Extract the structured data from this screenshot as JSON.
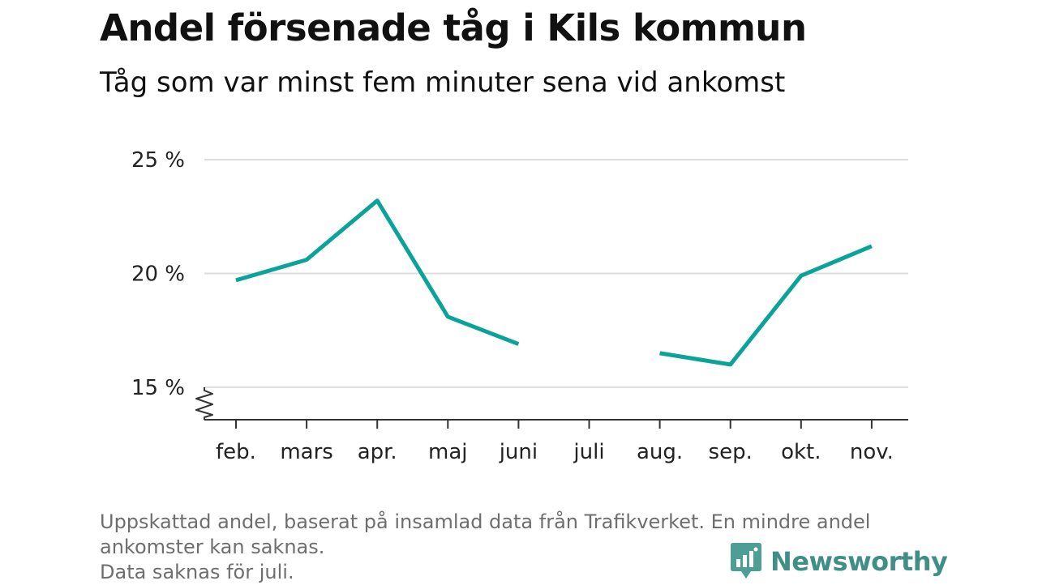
{
  "header": {
    "title": "Andel försenade tåg i Kils kommun",
    "subtitle": "Tåg som var minst fem minuter sena vid ankomst"
  },
  "chart_data": {
    "type": "line",
    "title": "Andel försenade tåg i Kils kommun",
    "subtitle": "Tåg som var minst fem minuter sena vid ankomst",
    "categories": [
      "feb.",
      "mars",
      "apr.",
      "maj",
      "juni",
      "juli",
      "aug.",
      "sep.",
      "okt.",
      "nov."
    ],
    "series": [
      {
        "values": [
          19.7,
          20.6,
          23.2,
          18.1,
          16.9,
          null,
          16.5,
          16.0,
          19.9,
          21.2
        ],
        "color": "#0aa39a"
      }
    ],
    "y_ticks": [
      15,
      20,
      25
    ],
    "y_tick_labels": [
      "15 %",
      "20 %",
      "25 %"
    ],
    "ylim": [
      15,
      25
    ],
    "y_axis_break": true,
    "grid": true,
    "xlabel": "",
    "ylabel": ""
  },
  "footer": {
    "note_lines": [
      "Uppskattad andel, baserat på insamlad data från Trafikverket. En mindre andel",
      "ankomster kan saknas.",
      "Data saknas för juli."
    ],
    "brand": "Newsworthy",
    "brand_color": "#4d9e95",
    "brand_text_color": "#3f8f86"
  }
}
